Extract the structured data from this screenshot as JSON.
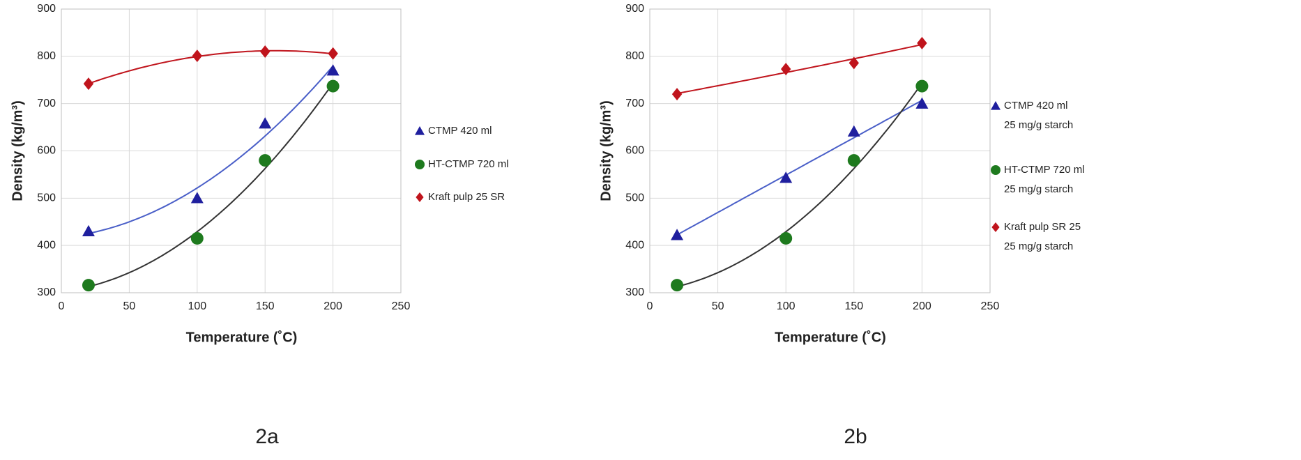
{
  "chart_data": [
    {
      "type": "scatter",
      "caption": "2a",
      "x_label": "Temperature (˚C)",
      "y_label": "Density (kg/m³)",
      "xlim": [
        0,
        250
      ],
      "xticks": [
        0,
        50,
        100,
        150,
        200,
        250
      ],
      "ylim": [
        300,
        900
      ],
      "yticks": [
        300,
        400,
        500,
        600,
        700,
        800,
        900
      ],
      "grid": true,
      "series": [
        {
          "name": "CTMP 420 ml",
          "color": "#1f1f9e",
          "marker": "triangle",
          "trendline": "poly2",
          "trend_color": "#4a5fc8",
          "x": [
            20,
            100,
            150,
            200
          ],
          "values": [
            430,
            500,
            658,
            770
          ]
        },
        {
          "name": "HT-CTMP 720 ml",
          "color": "#1e7a1e",
          "marker": "circle",
          "trendline": "poly2",
          "trend_color": "#333333",
          "x": [
            20,
            100,
            150,
            200
          ],
          "values": [
            316,
            415,
            580,
            737
          ]
        },
        {
          "name": "Kraft pulp 25 SR",
          "color": "#c0141c",
          "marker": "diamond",
          "trendline": "poly2",
          "trend_color": "#c0141c",
          "x": [
            20,
            100,
            150,
            200
          ],
          "values": [
            742,
            801,
            810,
            806
          ]
        }
      ]
    },
    {
      "type": "scatter",
      "caption": "2b",
      "x_label": "Temperature (˚C)",
      "y_label": "Density (kg/m³)",
      "xlim": [
        0,
        250
      ],
      "xticks": [
        0,
        50,
        100,
        150,
        200,
        250
      ],
      "ylim": [
        300,
        900
      ],
      "yticks": [
        300,
        400,
        500,
        600,
        700,
        800,
        900
      ],
      "grid": true,
      "series": [
        {
          "name": "CTMP 420 ml\n25 mg/g starch",
          "color": "#1f1f9e",
          "marker": "triangle",
          "trendline": "linear",
          "trend_color": "#4a5fc8",
          "x": [
            20,
            100,
            150,
            200
          ],
          "values": [
            422,
            543,
            641,
            700
          ]
        },
        {
          "name": "HT-CTMP 720 ml\n25 mg/g starch",
          "color": "#1e7a1e",
          "marker": "circle",
          "trendline": "poly2",
          "trend_color": "#333333",
          "x": [
            20,
            100,
            150,
            200
          ],
          "values": [
            316,
            415,
            580,
            737
          ]
        },
        {
          "name": "Kraft pulp SR 25\n25 mg/g starch",
          "color": "#c0141c",
          "marker": "diamond",
          "trendline": "poly2",
          "trend_color": "#c0141c",
          "x": [
            20,
            100,
            150,
            200
          ],
          "values": [
            720,
            773,
            786,
            828
          ]
        }
      ]
    }
  ]
}
